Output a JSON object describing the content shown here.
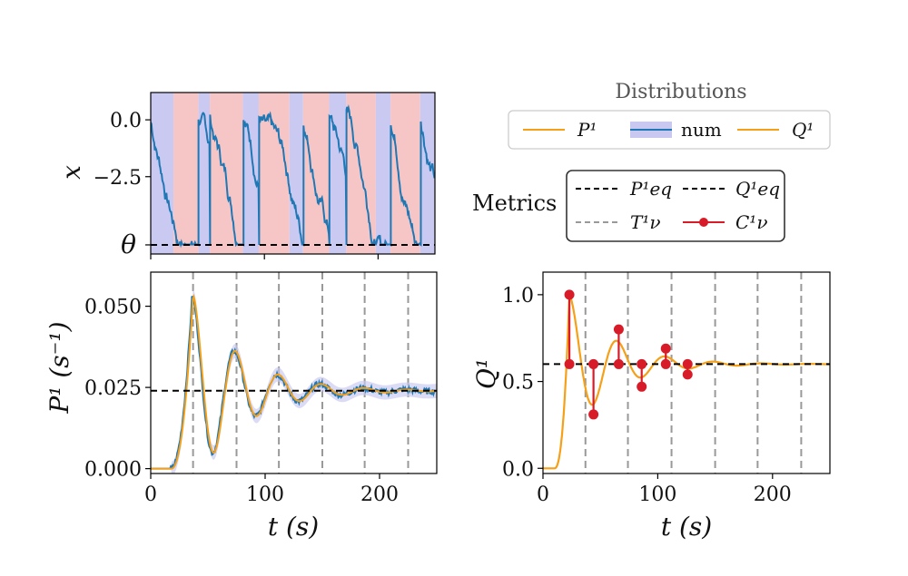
{
  "legends": {
    "distributions": {
      "title": "Distributions",
      "entries": [
        "P¹",
        "num",
        "Q¹"
      ]
    },
    "metrics": {
      "title": "Metrics",
      "entries": [
        "P¹eq",
        "Q¹eq",
        "T¹ν",
        "C¹ν"
      ]
    }
  },
  "colors": {
    "orange": "#f5a017",
    "blue": "#1f77b4",
    "band": "#c8c8f0",
    "red_bg": "#f6c6c6",
    "blue_bg": "#c9c9f2",
    "dot": "#d81b28",
    "grey": "#999999"
  },
  "chart_data": [
    {
      "id": "top-left",
      "type": "line",
      "ylabel": "x",
      "yticks": [
        "0.0",
        "−2.5"
      ],
      "ytick_values": [
        0.0,
        -2.5
      ],
      "theta_label": "θ",
      "theta_value": -5.5,
      "ylim": [
        -5.9,
        1.2
      ],
      "xlim": [
        0,
        250
      ],
      "shaded_regions": [
        {
          "state": "blue",
          "from": 0,
          "to": 20
        },
        {
          "state": "red",
          "from": 20,
          "to": 42
        },
        {
          "state": "blue",
          "from": 42,
          "to": 52
        },
        {
          "state": "red",
          "from": 52,
          "to": 81
        },
        {
          "state": "blue",
          "from": 81,
          "to": 95
        },
        {
          "state": "red",
          "from": 95,
          "to": 122
        },
        {
          "state": "blue",
          "from": 122,
          "to": 134
        },
        {
          "state": "red",
          "from": 134,
          "to": 157
        },
        {
          "state": "blue",
          "from": 157,
          "to": 172
        },
        {
          "state": "red",
          "from": 172,
          "to": 198
        },
        {
          "state": "blue",
          "from": 198,
          "to": 211
        },
        {
          "state": "red",
          "from": 211,
          "to": 237
        },
        {
          "state": "blue",
          "from": 237,
          "to": 250
        }
      ],
      "reset_times": [
        0,
        42,
        52,
        81,
        95,
        134,
        157,
        172,
        211,
        237
      ],
      "drift_per_s": -0.18
    },
    {
      "id": "bottom-left",
      "type": "line",
      "xlabel": "t (s)",
      "ylabel": "P¹ (s⁻¹)",
      "xticks": [
        "0",
        "100",
        "200"
      ],
      "xtick_values": [
        0,
        100,
        200
      ],
      "yticks": [
        "0.000",
        "0.025",
        "0.050"
      ],
      "ytick_values": [
        0.0,
        0.025,
        0.05
      ],
      "xlim": [
        0,
        250
      ],
      "ylim": [
        -0.0015,
        0.0605
      ],
      "equilibrium": 0.024,
      "vlines": [
        37,
        75,
        112,
        150,
        187,
        225
      ],
      "series": [
        {
          "name": "P¹",
          "color": "orange",
          "onset": 18,
          "amplitude": 0.0295,
          "period": 37.5,
          "decay_tau": 42,
          "t_peak": 37
        },
        {
          "name": "num",
          "color": "blue",
          "noise": 0.0009
        }
      ]
    },
    {
      "id": "bottom-right",
      "type": "line",
      "xlabel": "t (s)",
      "ylabel": "Q¹",
      "xticks": [
        "0",
        "100",
        "200"
      ],
      "xtick_values": [
        0,
        100,
        200
      ],
      "yticks": [
        "0.0",
        "0.5",
        "1.0"
      ],
      "ytick_values": [
        0.0,
        0.5,
        1.0
      ],
      "xlim": [
        0,
        250
      ],
      "ylim": [
        -0.03,
        1.13
      ],
      "equilibrium": 0.6,
      "vlines": [
        37,
        74,
        112,
        150,
        187,
        225
      ],
      "series": [
        {
          "name": "Q¹",
          "color": "orange",
          "onset": 10,
          "amplitude": 0.4,
          "period": 42,
          "decay_tau": 38,
          "t_peak": 23
        }
      ],
      "c_points": [
        {
          "t": 23,
          "value": 1.0
        },
        {
          "t": 44,
          "value": 0.31
        },
        {
          "t": 66,
          "value": 0.8
        },
        {
          "t": 86,
          "value": 0.47
        },
        {
          "t": 107,
          "value": 0.69
        },
        {
          "t": 126,
          "value": 0.54
        }
      ]
    }
  ]
}
